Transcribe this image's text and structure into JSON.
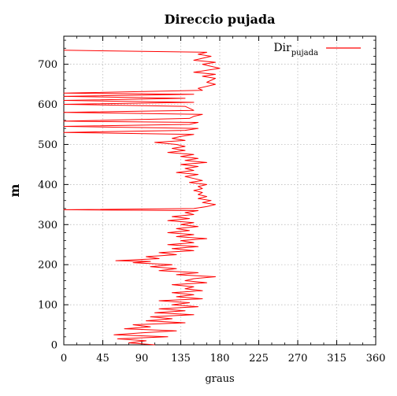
{
  "chart_data": {
    "type": "line",
    "title": "Direccio pujada",
    "xlabel": "graus",
    "ylabel": "m",
    "xlim": [
      0,
      360
    ],
    "ylim": [
      0,
      770
    ],
    "xticks": [
      0,
      45,
      90,
      135,
      180,
      225,
      270,
      315,
      360
    ],
    "yticks": [
      0,
      100,
      200,
      300,
      400,
      500,
      600,
      700
    ],
    "grid": true,
    "legend_position": "top-right",
    "legend_entries": [
      {
        "base": "Dir",
        "subscript": "pujada"
      }
    ],
    "series": [
      {
        "color": "#ff0000",
        "points": [
          [
            105,
            0
          ],
          [
            75,
            5
          ],
          [
            95,
            10
          ],
          [
            62,
            15
          ],
          [
            120,
            20
          ],
          [
            58,
            25
          ],
          [
            90,
            30
          ],
          [
            130,
            35
          ],
          [
            70,
            40
          ],
          [
            100,
            45
          ],
          [
            80,
            50
          ],
          [
            140,
            55
          ],
          [
            95,
            60
          ],
          [
            125,
            65
          ],
          [
            100,
            70
          ],
          [
            150,
            75
          ],
          [
            105,
            80
          ],
          [
            140,
            85
          ],
          [
            110,
            90
          ],
          [
            155,
            95
          ],
          [
            125,
            100
          ],
          [
            145,
            105
          ],
          [
            110,
            110
          ],
          [
            160,
            115
          ],
          [
            130,
            120
          ],
          [
            150,
            125
          ],
          [
            125,
            130
          ],
          [
            160,
            135
          ],
          [
            140,
            140
          ],
          [
            150,
            145
          ],
          [
            125,
            150
          ],
          [
            165,
            155
          ],
          [
            140,
            160
          ],
          [
            150,
            165
          ],
          [
            175,
            170
          ],
          [
            130,
            175
          ],
          [
            155,
            180
          ],
          [
            110,
            185
          ],
          [
            130,
            190
          ],
          [
            100,
            195
          ],
          [
            125,
            200
          ],
          [
            80,
            205
          ],
          [
            100,
            208
          ],
          [
            60,
            210
          ],
          [
            110,
            215
          ],
          [
            95,
            220
          ],
          [
            130,
            225
          ],
          [
            110,
            230
          ],
          [
            150,
            235
          ],
          [
            125,
            240
          ],
          [
            155,
            245
          ],
          [
            120,
            250
          ],
          [
            150,
            255
          ],
          [
            135,
            260
          ],
          [
            165,
            265
          ],
          [
            130,
            270
          ],
          [
            150,
            275
          ],
          [
            120,
            280
          ],
          [
            145,
            285
          ],
          [
            130,
            290
          ],
          [
            155,
            295
          ],
          [
            135,
            300
          ],
          [
            150,
            305
          ],
          [
            120,
            310
          ],
          [
            145,
            315
          ],
          [
            125,
            320
          ],
          [
            150,
            325
          ],
          [
            140,
            330
          ],
          [
            155,
            335
          ],
          [
            0,
            337
          ],
          [
            150,
            340
          ],
          [
            165,
            345
          ],
          [
            175,
            350
          ],
          [
            160,
            355
          ],
          [
            170,
            360
          ],
          [
            155,
            365
          ],
          [
            165,
            370
          ],
          [
            155,
            375
          ],
          [
            160,
            380
          ],
          [
            150,
            385
          ],
          [
            160,
            390
          ],
          [
            155,
            395
          ],
          [
            165,
            400
          ],
          [
            145,
            405
          ],
          [
            160,
            410
          ],
          [
            150,
            415
          ],
          [
            140,
            420
          ],
          [
            155,
            425
          ],
          [
            130,
            430
          ],
          [
            150,
            435
          ],
          [
            140,
            440
          ],
          [
            155,
            445
          ],
          [
            135,
            450
          ],
          [
            165,
            455
          ],
          [
            140,
            460
          ],
          [
            155,
            465
          ],
          [
            135,
            470
          ],
          [
            150,
            475
          ],
          [
            120,
            480
          ],
          [
            140,
            485
          ],
          [
            125,
            490
          ],
          [
            140,
            495
          ],
          [
            130,
            500
          ],
          [
            105,
            505
          ],
          [
            140,
            510
          ],
          [
            125,
            515
          ],
          [
            135,
            520
          ],
          [
            150,
            525
          ],
          [
            0,
            530
          ],
          [
            140,
            535
          ],
          [
            155,
            540
          ],
          [
            0,
            545
          ],
          [
            145,
            550
          ],
          [
            155,
            555
          ],
          [
            0,
            558
          ],
          [
            145,
            565
          ],
          [
            150,
            570
          ],
          [
            160,
            575
          ],
          [
            0,
            580
          ],
          [
            150,
            585
          ],
          [
            145,
            590
          ],
          [
            140,
            595
          ],
          [
            0,
            600
          ],
          [
            150,
            605
          ],
          [
            0,
            610
          ],
          [
            140,
            615
          ],
          [
            0,
            620
          ],
          [
            150,
            625
          ],
          [
            0,
            628
          ],
          [
            160,
            635
          ],
          [
            155,
            640
          ],
          [
            175,
            650
          ],
          [
            165,
            655
          ],
          [
            170,
            660
          ],
          [
            175,
            665
          ],
          [
            160,
            670
          ],
          [
            175,
            675
          ],
          [
            150,
            680
          ],
          [
            165,
            685
          ],
          [
            180,
            690
          ],
          [
            170,
            695
          ],
          [
            160,
            700
          ],
          [
            175,
            705
          ],
          [
            150,
            710
          ],
          [
            160,
            715
          ],
          [
            170,
            720
          ],
          [
            155,
            725
          ],
          [
            165,
            730
          ],
          [
            0,
            735
          ]
        ]
      }
    ]
  }
}
